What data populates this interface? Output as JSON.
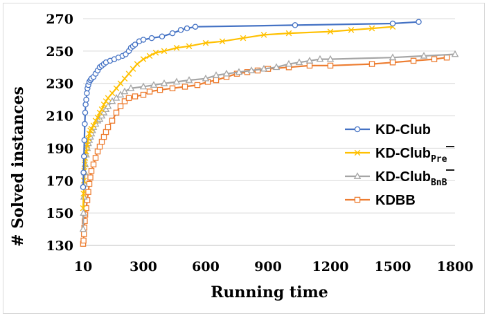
{
  "chart_data": {
    "type": "line",
    "xlabel": "Running time",
    "ylabel": "# Solved instances",
    "xticks": [
      10,
      300,
      600,
      900,
      1200,
      1500,
      1800
    ],
    "yticks": [
      130,
      150,
      170,
      190,
      210,
      230,
      250,
      270
    ],
    "xlim": [
      10,
      1800
    ],
    "ylim": [
      130,
      270
    ],
    "grid": "horizontal",
    "legend_position": "right",
    "series": [
      {
        "name": "KD-Club",
        "sub": "",
        "color": "#4472c4",
        "marker": "circle",
        "points": [
          [
            10,
            166
          ],
          [
            12,
            175
          ],
          [
            14,
            185
          ],
          [
            16,
            195
          ],
          [
            18,
            205
          ],
          [
            20,
            212
          ],
          [
            22,
            217
          ],
          [
            25,
            220
          ],
          [
            28,
            224
          ],
          [
            31,
            227
          ],
          [
            35,
            229
          ],
          [
            40,
            231
          ],
          [
            45,
            232
          ],
          [
            50,
            233
          ],
          [
            60,
            234
          ],
          [
            70,
            236
          ],
          [
            80,
            238
          ],
          [
            90,
            240
          ],
          [
            100,
            241
          ],
          [
            110,
            242
          ],
          [
            120,
            243
          ],
          [
            140,
            244
          ],
          [
            160,
            245
          ],
          [
            180,
            246
          ],
          [
            200,
            247
          ],
          [
            215,
            248
          ],
          [
            230,
            250
          ],
          [
            240,
            252
          ],
          [
            250,
            253
          ],
          [
            260,
            254
          ],
          [
            280,
            256
          ],
          [
            300,
            257
          ],
          [
            340,
            258
          ],
          [
            390,
            259
          ],
          [
            440,
            261
          ],
          [
            480,
            263
          ],
          [
            510,
            264
          ],
          [
            550,
            265
          ],
          [
            1030,
            266
          ],
          [
            1500,
            267
          ],
          [
            1625,
            268
          ]
        ]
      },
      {
        "name": "KD-Club",
        "sub": "Pre",
        "color": "#ffc000",
        "marker": "x",
        "points": [
          [
            10,
            153
          ],
          [
            12,
            162
          ],
          [
            14,
            170
          ],
          [
            16,
            176
          ],
          [
            18,
            180
          ],
          [
            20,
            184
          ],
          [
            25,
            188
          ],
          [
            30,
            192
          ],
          [
            35,
            196
          ],
          [
            40,
            199
          ],
          [
            45,
            201
          ],
          [
            50,
            202
          ],
          [
            60,
            204
          ],
          [
            70,
            207
          ],
          [
            80,
            209
          ],
          [
            90,
            212
          ],
          [
            100,
            214
          ],
          [
            110,
            217
          ],
          [
            120,
            219
          ],
          [
            130,
            221
          ],
          [
            150,
            224
          ],
          [
            170,
            227
          ],
          [
            190,
            230
          ],
          [
            210,
            233
          ],
          [
            230,
            236
          ],
          [
            250,
            239
          ],
          [
            270,
            242
          ],
          [
            300,
            245
          ],
          [
            330,
            247
          ],
          [
            360,
            249
          ],
          [
            400,
            250
          ],
          [
            460,
            252
          ],
          [
            520,
            253
          ],
          [
            600,
            255
          ],
          [
            680,
            256
          ],
          [
            780,
            258
          ],
          [
            880,
            260
          ],
          [
            1000,
            261
          ],
          [
            1200,
            262
          ],
          [
            1300,
            263
          ],
          [
            1400,
            264
          ],
          [
            1500,
            265
          ]
        ]
      },
      {
        "name": "KD-Club",
        "sub": "BnB",
        "color": "#a5a5a5",
        "marker": "triangle",
        "points": [
          [
            10,
            140
          ],
          [
            12,
            150
          ],
          [
            14,
            160
          ],
          [
            16,
            168
          ],
          [
            18,
            175
          ],
          [
            20,
            180
          ],
          [
            25,
            186
          ],
          [
            30,
            190
          ],
          [
            35,
            193
          ],
          [
            40,
            195
          ],
          [
            45,
            197
          ],
          [
            50,
            199
          ],
          [
            55,
            201
          ],
          [
            60,
            203
          ],
          [
            70,
            205
          ],
          [
            80,
            207
          ],
          [
            90,
            208
          ],
          [
            100,
            210
          ],
          [
            110,
            212
          ],
          [
            120,
            214
          ],
          [
            130,
            216
          ],
          [
            150,
            219
          ],
          [
            170,
            221
          ],
          [
            190,
            223
          ],
          [
            210,
            225
          ],
          [
            240,
            227
          ],
          [
            300,
            228
          ],
          [
            350,
            229
          ],
          [
            400,
            230
          ],
          [
            460,
            231
          ],
          [
            520,
            232
          ],
          [
            600,
            233
          ],
          [
            650,
            235
          ],
          [
            700,
            236
          ],
          [
            760,
            237
          ],
          [
            820,
            238
          ],
          [
            880,
            239
          ],
          [
            940,
            240
          ],
          [
            1000,
            242
          ],
          [
            1050,
            243
          ],
          [
            1100,
            244
          ],
          [
            1150,
            245
          ],
          [
            1200,
            245
          ],
          [
            1500,
            246
          ],
          [
            1650,
            247
          ],
          [
            1800,
            248
          ]
        ]
      },
      {
        "name": "KDBB",
        "sub": "",
        "color": "#ed7d31",
        "marker": "square",
        "points": [
          [
            10,
            131
          ],
          [
            12,
            133
          ],
          [
            14,
            137
          ],
          [
            16,
            141
          ],
          [
            18,
            145
          ],
          [
            20,
            149
          ],
          [
            25,
            153
          ],
          [
            30,
            158
          ],
          [
            35,
            163
          ],
          [
            40,
            168
          ],
          [
            45,
            172
          ],
          [
            50,
            176
          ],
          [
            60,
            180
          ],
          [
            70,
            184
          ],
          [
            80,
            188
          ],
          [
            90,
            191
          ],
          [
            100,
            194
          ],
          [
            110,
            197
          ],
          [
            120,
            200
          ],
          [
            130,
            203
          ],
          [
            150,
            207
          ],
          [
            170,
            212
          ],
          [
            190,
            216
          ],
          [
            210,
            219
          ],
          [
            230,
            221
          ],
          [
            260,
            222
          ],
          [
            300,
            223
          ],
          [
            330,
            225
          ],
          [
            380,
            226
          ],
          [
            440,
            227
          ],
          [
            500,
            228
          ],
          [
            560,
            229
          ],
          [
            610,
            231
          ],
          [
            650,
            232
          ],
          [
            700,
            234
          ],
          [
            750,
            236
          ],
          [
            800,
            237
          ],
          [
            850,
            238
          ],
          [
            900,
            239
          ],
          [
            1000,
            240
          ],
          [
            1100,
            241
          ],
          [
            1200,
            241
          ],
          [
            1400,
            242
          ],
          [
            1500,
            243
          ],
          [
            1600,
            244
          ],
          [
            1700,
            245
          ],
          [
            1760,
            246
          ]
        ]
      }
    ]
  }
}
